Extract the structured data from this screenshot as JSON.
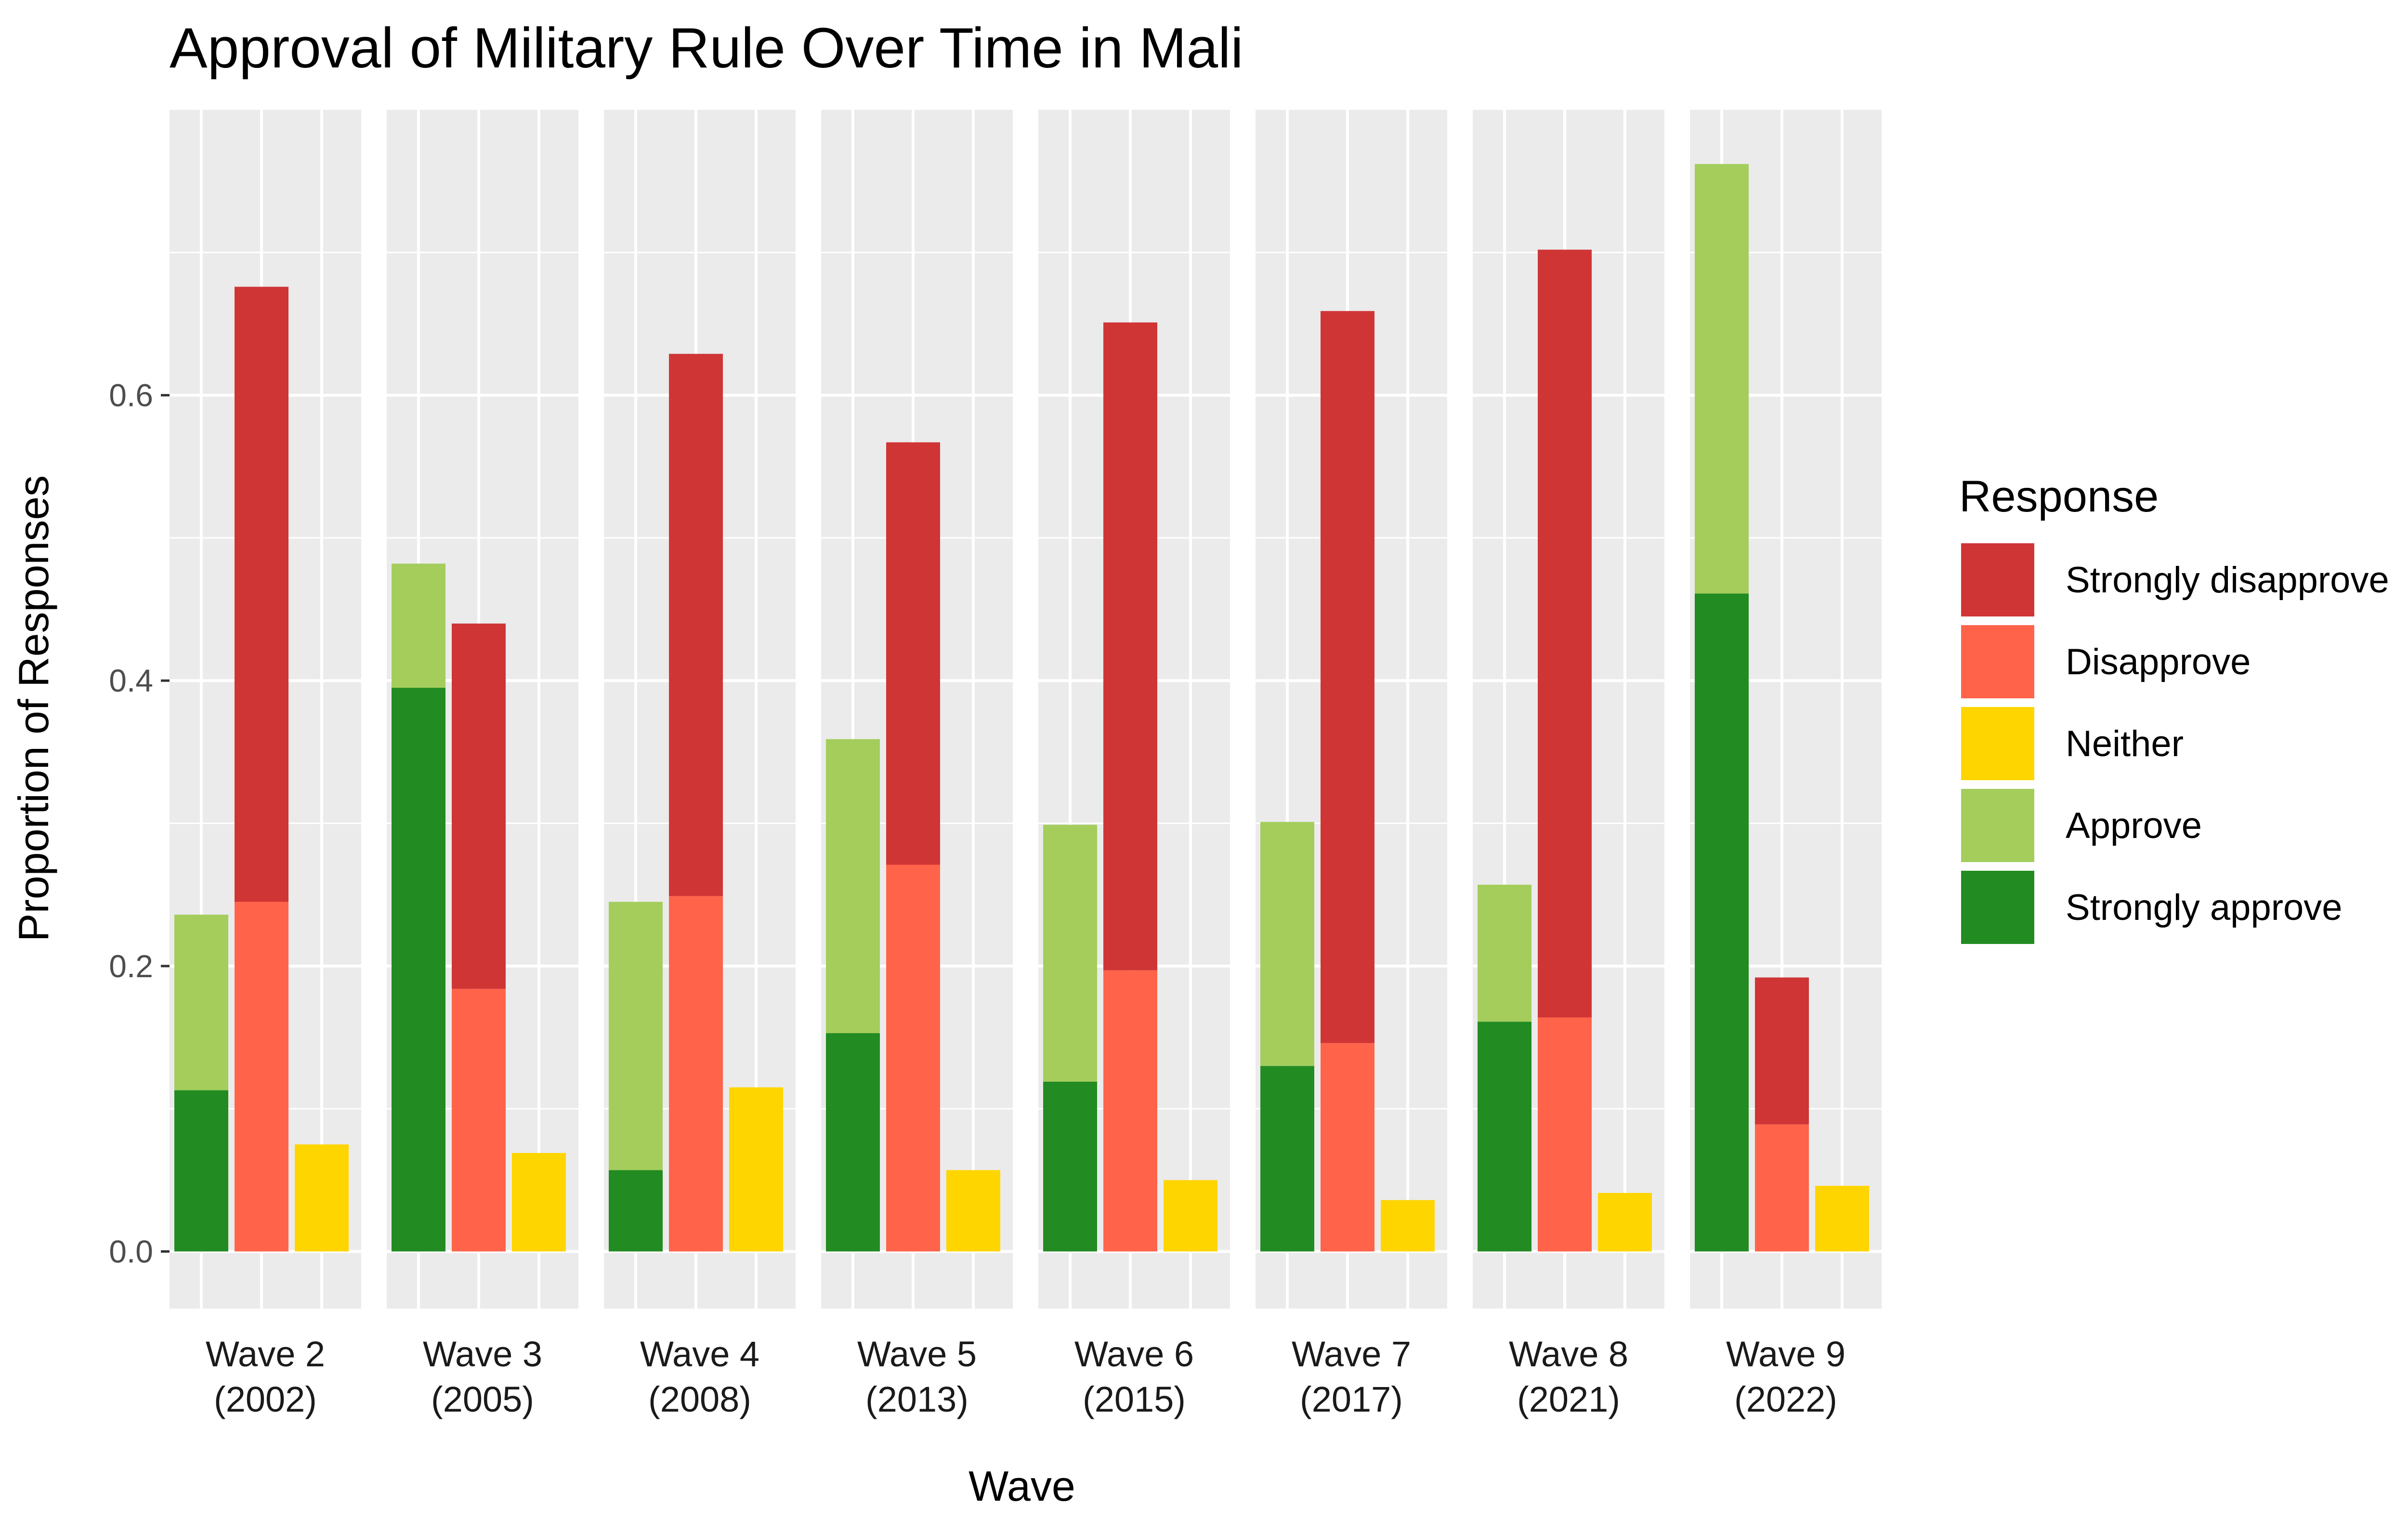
{
  "chart_data": {
    "type": "bar",
    "title": "Approval of Military Rule Over Time in Mali",
    "xlabel": "Wave",
    "ylabel": "Proportion of Responses",
    "ylim": [
      -0.04,
      0.8
    ],
    "y_ticks": [
      0.0,
      0.2,
      0.4,
      0.6
    ],
    "y_tick_labels": [
      "0.0",
      "0.2",
      "0.4",
      "0.6"
    ],
    "grid": true,
    "legend": {
      "title": "Response",
      "placement": "right"
    },
    "legend_order": [
      "Strongly disapprove",
      "Disapprove",
      "Neither",
      "Approve",
      "Strongly approve"
    ],
    "colors": {
      "Strongly disapprove": "#D03535",
      "Disapprove": "#FF644B",
      "Neither": "#FFD500",
      "Approve": "#A4CD5C",
      "Strongly approve": "#228B22"
    },
    "panel_background": "#EBEBEB",
    "grid_color": "#FFFFFF",
    "groups": [
      "Approve",
      "Disapprove",
      "Neither"
    ],
    "group_stacks": {
      "Approve": [
        "Strongly approve",
        "Approve"
      ],
      "Disapprove": [
        "Disapprove",
        "Strongly disapprove"
      ],
      "Neither": [
        "Neither"
      ]
    },
    "waves": [
      {
        "label_line1": "Wave 2",
        "label_line2": "(2002)",
        "values": {
          "Strongly approve": 0.113,
          "Approve": 0.123,
          "Disapprove": 0.245,
          "Strongly disapprove": 0.431,
          "Neither": 0.075
        }
      },
      {
        "label_line1": "Wave 3",
        "label_line2": "(2005)",
        "values": {
          "Strongly approve": 0.395,
          "Approve": 0.087,
          "Disapprove": 0.184,
          "Strongly disapprove": 0.256,
          "Neither": 0.069
        }
      },
      {
        "label_line1": "Wave 4",
        "label_line2": "(2008)",
        "values": {
          "Strongly approve": 0.057,
          "Approve": 0.188,
          "Disapprove": 0.249,
          "Strongly disapprove": 0.38,
          "Neither": 0.115
        }
      },
      {
        "label_line1": "Wave 5",
        "label_line2": "(2013)",
        "values": {
          "Strongly approve": 0.153,
          "Approve": 0.206,
          "Disapprove": 0.271,
          "Strongly disapprove": 0.296,
          "Neither": 0.057
        }
      },
      {
        "label_line1": "Wave 6",
        "label_line2": "(2015)",
        "values": {
          "Strongly approve": 0.119,
          "Approve": 0.18,
          "Disapprove": 0.197,
          "Strongly disapprove": 0.454,
          "Neither": 0.05
        }
      },
      {
        "label_line1": "Wave 7",
        "label_line2": "(2017)",
        "values": {
          "Strongly approve": 0.13,
          "Approve": 0.171,
          "Disapprove": 0.146,
          "Strongly disapprove": 0.513,
          "Neither": 0.036
        }
      },
      {
        "label_line1": "Wave 8",
        "label_line2": "(2021)",
        "values": {
          "Strongly approve": 0.161,
          "Approve": 0.096,
          "Disapprove": 0.164,
          "Strongly disapprove": 0.538,
          "Neither": 0.041
        }
      },
      {
        "label_line1": "Wave 9",
        "label_line2": "(2022)",
        "values": {
          "Strongly approve": 0.461,
          "Approve": 0.301,
          "Disapprove": 0.089,
          "Strongly disapprove": 0.103,
          "Neither": 0.046
        }
      }
    ]
  }
}
